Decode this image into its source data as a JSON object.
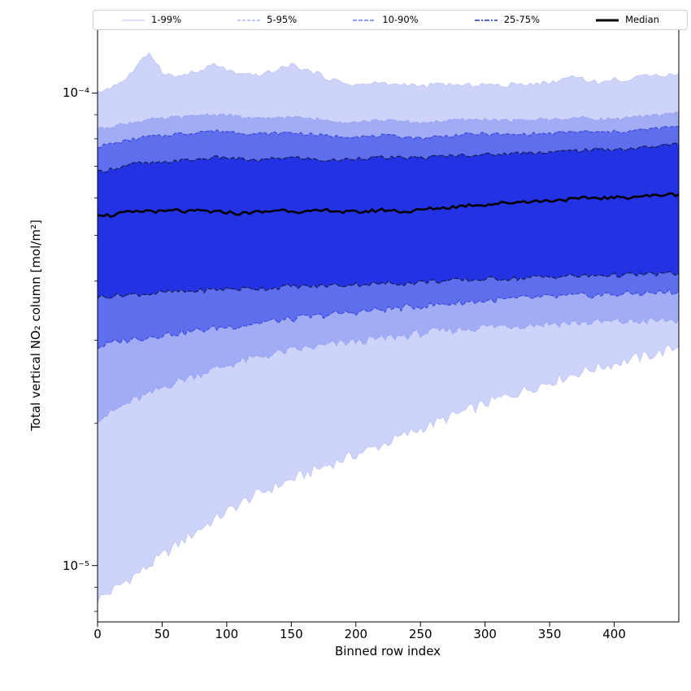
{
  "chart_data": {
    "type": "area",
    "subtype": "percentile-band-plot",
    "title": "",
    "xlabel": "Binned row index",
    "ylabel": "Total vertical NO₂ column [mol/m²]",
    "yscale": "log",
    "xlim": [
      0,
      450
    ],
    "ylim": [
      7.6e-06,
      0.000137
    ],
    "x_ticks": [
      0,
      50,
      100,
      150,
      200,
      250,
      300,
      350,
      400
    ],
    "x_tick_labels": [
      "0",
      "50",
      "100",
      "150",
      "200",
      "250",
      "300",
      "350",
      "400"
    ],
    "y_ticks": [
      0.0001,
      1e-05
    ],
    "y_tick_labels": [
      "10⁻⁴",
      "10⁻⁵"
    ],
    "value_scale": 1e-05,
    "x": [
      0,
      10,
      20,
      30,
      40,
      50,
      60,
      70,
      80,
      90,
      100,
      110,
      120,
      130,
      140,
      150,
      160,
      170,
      180,
      190,
      200,
      210,
      220,
      230,
      240,
      250,
      260,
      270,
      280,
      290,
      300,
      310,
      320,
      330,
      340,
      350,
      360,
      370,
      380,
      390,
      400,
      410,
      420,
      430,
      440,
      450
    ],
    "percentiles": {
      "p1": [
        0.85,
        0.88,
        0.92,
        0.96,
        1.0,
        1.05,
        1.1,
        1.15,
        1.2,
        1.25,
        1.3,
        1.35,
        1.4,
        1.44,
        1.48,
        1.52,
        1.56,
        1.6,
        1.64,
        1.68,
        1.72,
        1.76,
        1.8,
        1.85,
        1.9,
        1.95,
        2.0,
        2.05,
        2.1,
        2.15,
        2.2,
        2.25,
        2.3,
        2.35,
        2.4,
        2.45,
        2.5,
        2.55,
        2.6,
        2.64,
        2.68,
        2.72,
        2.76,
        2.8,
        2.85,
        2.9
      ],
      "p5": [
        2.05,
        2.1,
        2.18,
        2.25,
        2.3,
        2.38,
        2.44,
        2.5,
        2.55,
        2.6,
        2.65,
        2.7,
        2.74,
        2.78,
        2.82,
        2.85,
        2.88,
        2.9,
        2.93,
        2.96,
        2.98,
        3.0,
        3.02,
        3.05,
        3.07,
        3.1,
        3.12,
        3.14,
        3.16,
        3.18,
        3.2,
        3.21,
        3.22,
        3.23,
        3.24,
        3.25,
        3.26,
        3.26,
        3.27,
        3.27,
        3.28,
        3.28,
        3.29,
        3.29,
        3.3,
        3.3
      ],
      "p10": [
        2.9,
        2.95,
        3.0,
        3.02,
        3.05,
        3.08,
        3.1,
        3.12,
        3.15,
        3.18,
        3.2,
        3.22,
        3.25,
        3.28,
        3.3,
        3.32,
        3.35,
        3.37,
        3.4,
        3.42,
        3.44,
        3.46,
        3.48,
        3.5,
        3.52,
        3.54,
        3.56,
        3.58,
        3.6,
        3.62,
        3.63,
        3.65,
        3.66,
        3.68,
        3.69,
        3.7,
        3.71,
        3.72,
        3.73,
        3.74,
        3.75,
        3.76,
        3.77,
        3.78,
        3.79,
        3.8
      ],
      "p25": [
        3.7,
        3.72,
        3.74,
        3.75,
        3.76,
        3.78,
        3.8,
        3.8,
        3.82,
        3.84,
        3.85,
        3.85,
        3.86,
        3.86,
        3.88,
        3.9,
        3.9,
        3.9,
        3.92,
        3.92,
        3.94,
        3.94,
        3.95,
        3.96,
        3.96,
        3.98,
        4.0,
        4.0,
        4.02,
        4.02,
        4.04,
        4.05,
        4.05,
        4.06,
        4.08,
        4.08,
        4.1,
        4.1,
        4.1,
        4.12,
        4.12,
        4.12,
        4.13,
        4.14,
        4.15,
        4.15
      ],
      "p50": [
        5.55,
        5.5,
        5.58,
        5.6,
        5.64,
        5.6,
        5.65,
        5.6,
        5.64,
        5.6,
        5.6,
        5.55,
        5.6,
        5.6,
        5.66,
        5.64,
        5.6,
        5.62,
        5.66,
        5.6,
        5.6,
        5.62,
        5.66,
        5.64,
        5.6,
        5.66,
        5.7,
        5.72,
        5.76,
        5.8,
        5.8,
        5.84,
        5.86,
        5.9,
        5.9,
        5.92,
        5.95,
        5.96,
        6.0,
        6.0,
        6.0,
        6.02,
        6.05,
        6.06,
        6.1,
        6.1
      ],
      "p75": [
        6.8,
        6.9,
        7.0,
        7.1,
        7.1,
        7.1,
        7.2,
        7.2,
        7.25,
        7.3,
        7.3,
        7.25,
        7.2,
        7.22,
        7.28,
        7.3,
        7.28,
        7.22,
        7.2,
        7.22,
        7.28,
        7.3,
        7.3,
        7.28,
        7.3,
        7.3,
        7.32,
        7.36,
        7.38,
        7.4,
        7.4,
        7.42,
        7.44,
        7.48,
        7.5,
        7.5,
        7.52,
        7.56,
        7.58,
        7.6,
        7.6,
        7.62,
        7.66,
        7.7,
        7.76,
        7.8
      ],
      "p90": [
        7.7,
        7.8,
        7.9,
        8.0,
        8.1,
        8.1,
        8.2,
        8.2,
        8.3,
        8.3,
        8.3,
        8.25,
        8.2,
        8.2,
        8.22,
        8.25,
        8.2,
        8.15,
        8.1,
        8.1,
        8.1,
        8.08,
        8.12,
        8.1,
        8.08,
        8.02,
        8.08,
        8.1,
        8.15,
        8.18,
        8.2,
        8.18,
        8.15,
        8.18,
        8.2,
        8.2,
        8.25,
        8.28,
        8.28,
        8.25,
        8.28,
        8.3,
        8.35,
        8.4,
        8.45,
        8.5
      ],
      "p95": [
        8.4,
        8.5,
        8.6,
        8.7,
        8.8,
        8.8,
        8.9,
        8.9,
        9.0,
        9.0,
        9.0,
        8.9,
        8.85,
        8.8,
        8.9,
        8.9,
        8.85,
        8.8,
        8.75,
        8.7,
        8.7,
        8.72,
        8.78,
        8.72,
        8.7,
        8.65,
        8.7,
        8.72,
        8.78,
        8.78,
        8.8,
        8.78,
        8.72,
        8.78,
        8.8,
        8.8,
        8.82,
        8.86,
        8.86,
        8.8,
        8.82,
        8.86,
        8.9,
        8.95,
        9.05,
        9.15
      ],
      "p99": [
        10.0,
        10.3,
        10.6,
        11.3,
        12.2,
        11.1,
        10.8,
        11.0,
        11.1,
        11.5,
        11.2,
        10.9,
        10.9,
        11.0,
        11.2,
        11.5,
        11.2,
        11.0,
        10.7,
        10.5,
        10.4,
        10.45,
        10.5,
        10.4,
        10.45,
        10.3,
        10.4,
        10.45,
        10.35,
        10.4,
        10.45,
        10.35,
        10.4,
        10.45,
        10.5,
        10.5,
        10.7,
        10.9,
        10.6,
        10.5,
        10.7,
        10.6,
        10.8,
        11.0,
        10.9,
        11.0
      ]
    },
    "bands": [
      {
        "label": "1-99%",
        "lower": "p1",
        "upper": "p99",
        "fill": "#cdd3f9",
        "edge": "#c2c8f6",
        "edge_dash": "",
        "edge_width": 1
      },
      {
        "label": "5-95%",
        "lower": "p5",
        "upper": "p95",
        "fill": "#a2acf4",
        "edge": "#97a1f0",
        "edge_dash": "4 2",
        "edge_width": 1
      },
      {
        "label": "10-90%",
        "lower": "p10",
        "upper": "p90",
        "fill": "#5f6eec",
        "edge": "#3c4bd8",
        "edge_dash": "5 2",
        "edge_width": 1.2
      },
      {
        "label": "25-75%",
        "lower": "p25",
        "upper": "p75",
        "fill": "#2333e3",
        "edge": "#16205e",
        "edge_dash": "6 2",
        "edge_width": 1.3
      }
    ],
    "median": {
      "label": "Median",
      "color": "#000000",
      "width": 2.6
    },
    "legend": [
      {
        "label": "1-99%",
        "color": "#c9cef8",
        "dash": "",
        "width": 1.2
      },
      {
        "label": "5-95%",
        "color": "#9aa5f2",
        "dash": "4 2",
        "width": 1.2
      },
      {
        "label": "10-90%",
        "color": "#4d5ce8",
        "dash": "5 2",
        "width": 1.3
      },
      {
        "label": "25-75%",
        "color": "#2230b0",
        "dash": "6 2 2 2",
        "width": 1.6
      },
      {
        "label": "Median",
        "color": "#000000",
        "dash": "",
        "width": 3
      }
    ]
  }
}
